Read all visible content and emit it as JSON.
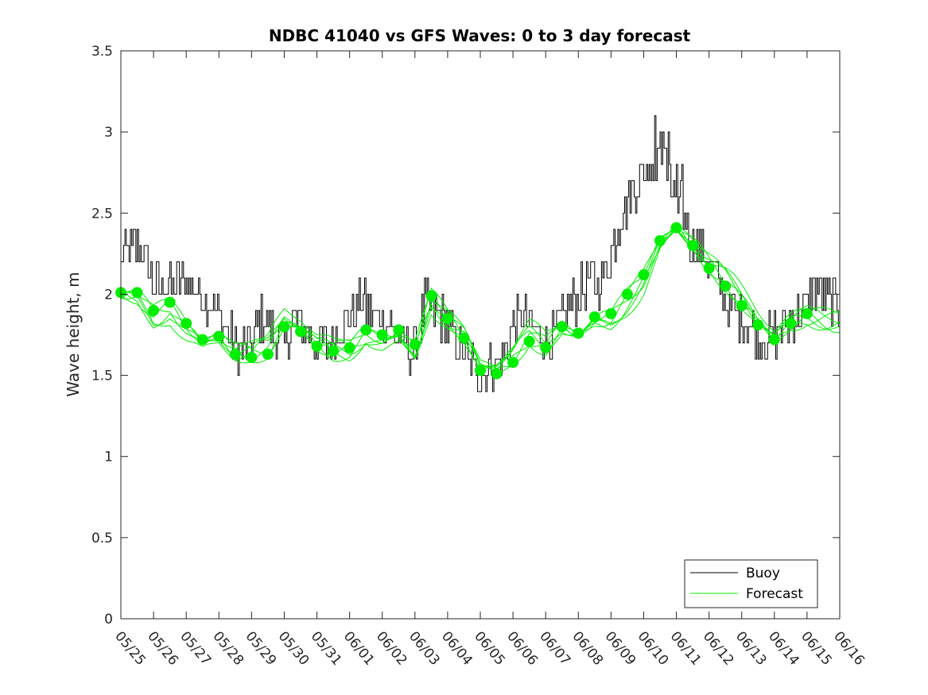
{
  "chart_data": {
    "type": "line",
    "title": "NDBC 41040 vs GFS Waves: 0 to 3 day forecast",
    "xlabel": "",
    "ylabel": "Wave height, m",
    "ylim": [
      0,
      3.5
    ],
    "yticks": [
      "0",
      "0.5",
      "1",
      "1.5",
      "2",
      "2.5",
      "3",
      "3.5"
    ],
    "xlim": [
      "05/25",
      "06/16"
    ],
    "xticks": [
      "05/25",
      "05/26",
      "05/27",
      "05/28",
      "05/29",
      "05/30",
      "05/31",
      "06/01",
      "06/02",
      "06/03",
      "06/04",
      "06/05",
      "06/06",
      "06/07",
      "06/08",
      "06/09",
      "06/10",
      "06/11",
      "06/12",
      "06/13",
      "06/14",
      "06/15",
      "06/16"
    ],
    "grid": false,
    "legend_position": "bottom-right",
    "colors": {
      "buoy": "#000000",
      "forecast": "#00ee00"
    },
    "buoy_anchors": {
      "name": "Buoy",
      "day_offsets": [
        0,
        0.4,
        0.8,
        1.0,
        1.5,
        2.0,
        2.5,
        2.8,
        3.2,
        3.6,
        4.0,
        4.3,
        4.6,
        5.0,
        5.3,
        5.6,
        6.0,
        6.3,
        6.6,
        7.0,
        7.3,
        7.6,
        8.0,
        8.3,
        8.6,
        9.0,
        9.3,
        9.6,
        10.0,
        10.3,
        10.6,
        11.0,
        11.4,
        11.7,
        12.0,
        12.3,
        12.6,
        13.0,
        13.3,
        13.6,
        14.0,
        14.3,
        14.6,
        15.0,
        15.3,
        15.6,
        16.0,
        16.3,
        16.6,
        16.9,
        17.1,
        17.3,
        17.6,
        18.0,
        18.3,
        18.6,
        19.0,
        19.3,
        19.6,
        20.0,
        20.3,
        20.6,
        21.0,
        21.3,
        21.6,
        22.0
      ],
      "values": [
        2.2,
        2.3,
        2.2,
        2.05,
        2.05,
        2.1,
        2.0,
        1.95,
        1.8,
        1.65,
        1.7,
        1.85,
        1.8,
        1.65,
        1.85,
        1.8,
        1.7,
        1.7,
        1.75,
        1.85,
        1.95,
        1.9,
        1.85,
        1.8,
        1.7,
        1.65,
        1.95,
        1.9,
        1.8,
        1.7,
        1.6,
        1.5,
        1.55,
        1.6,
        1.8,
        1.85,
        1.8,
        1.75,
        1.75,
        1.9,
        2.0,
        2.1,
        2.05,
        2.25,
        2.5,
        2.6,
        2.75,
        2.8,
        2.9,
        2.6,
        2.5,
        2.4,
        2.3,
        2.2,
        2.05,
        1.9,
        1.85,
        1.8,
        1.7,
        1.75,
        1.8,
        1.85,
        1.95,
        2.05,
        2.0,
        1.9
      ]
    },
    "forecast": {
      "name": "Forecast",
      "day_offsets": [
        0,
        0.5,
        1.0,
        1.5,
        2.0,
        2.5,
        3.0,
        3.5,
        4.0,
        4.5,
        5.0,
        5.5,
        6.0,
        6.5,
        7.0,
        7.5,
        8.0,
        8.5,
        9.0,
        9.5,
        10.0,
        10.5,
        11.0,
        11.5,
        12.0,
        12.5,
        13.0,
        13.5,
        14.0,
        14.5,
        15.0,
        15.5,
        16.0,
        16.5,
        17.0,
        17.5,
        18.0,
        18.5,
        19.0,
        19.5,
        20.0,
        20.5,
        21.0
      ],
      "values": [
        2.01,
        2.01,
        1.9,
        1.95,
        1.82,
        1.72,
        1.74,
        1.63,
        1.61,
        1.63,
        1.8,
        1.77,
        1.68,
        1.65,
        1.67,
        1.78,
        1.75,
        1.78,
        1.69,
        1.99,
        1.85,
        1.73,
        1.53,
        1.51,
        1.58,
        1.71,
        1.67,
        1.8,
        1.76,
        1.86,
        1.88,
        2.0,
        2.12,
        2.33,
        2.41,
        2.3,
        2.16,
        2.05,
        1.93,
        1.81,
        1.72,
        1.82,
        1.88
      ]
    },
    "forecast_runs": 6,
    "legend": [
      {
        "label": "Buoy",
        "color": "#000000"
      },
      {
        "label": "Forecast",
        "color": "#00ee00"
      }
    ]
  }
}
